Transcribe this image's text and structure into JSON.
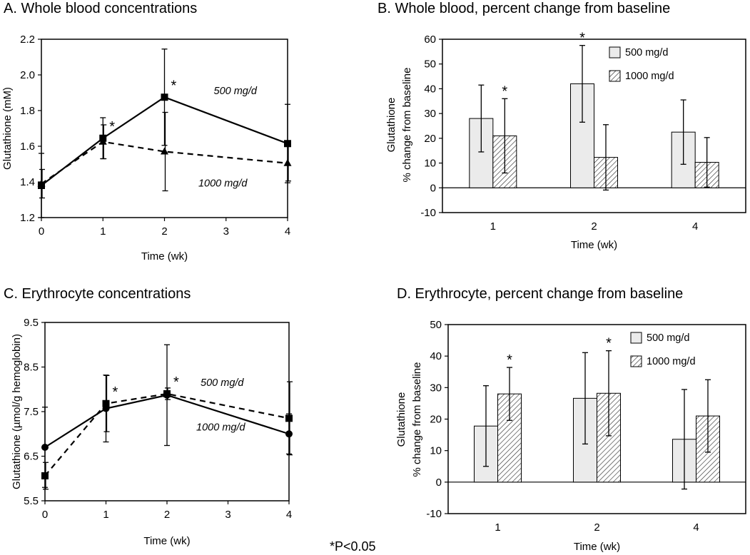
{
  "footnote": "*P<0.05",
  "colors": {
    "bar_500": "#ebebeb",
    "axis": "#000000",
    "line": "#000000"
  },
  "chart_data": [
    {
      "id": "A",
      "type": "line",
      "title": "A.  Whole blood concentrations",
      "xlabel": "Time (wk)",
      "ylabel": "Glutathione (mM)",
      "xlim": [
        0,
        4
      ],
      "ylim": [
        1.2,
        2.2
      ],
      "xticks": [
        0,
        1,
        2,
        3,
        4
      ],
      "yticks": [
        1.2,
        1.4,
        1.6,
        1.8,
        2.0,
        2.2
      ],
      "tick_decimals": 1,
      "series": [
        {
          "name": "500 mg/d",
          "label": "500 mg/d",
          "dash": "solid",
          "marker": "square",
          "x": [
            0,
            1,
            2,
            4
          ],
          "y": [
            1.38,
            1.645,
            1.875,
            1.615
          ],
          "err": [
            0.18,
            0.115,
            0.27,
            0.22
          ],
          "sig": [
            false,
            true,
            true,
            false
          ]
        },
        {
          "name": "1000 mg/d",
          "label": "1000 mg/d",
          "dash": "dashed",
          "marker": "triangle",
          "x": [
            0,
            1,
            2,
            4
          ],
          "y": [
            1.39,
            1.625,
            1.57,
            1.505
          ],
          "err": [
            0.08,
            0.095,
            0.22,
            0.1
          ],
          "sig": [
            false,
            false,
            false,
            false
          ]
        }
      ]
    },
    {
      "id": "B",
      "type": "bar",
      "title": "B.  Whole blood, percent change from baseline",
      "xlabel": "Time (wk)",
      "ylabel": [
        "Glutathione",
        "% change from baseline"
      ],
      "categories": [
        "1",
        "2",
        "4"
      ],
      "ylim": [
        -10,
        60
      ],
      "yticks": [
        -10,
        0,
        10,
        20,
        30,
        40,
        50,
        60
      ],
      "legend": "top-right",
      "series": [
        {
          "name": "500 mg/d",
          "pattern": "solid",
          "values": [
            28,
            42,
            22.5
          ],
          "err": [
            13.5,
            15.5,
            13
          ],
          "sig": [
            false,
            true,
            false
          ]
        },
        {
          "name": "1000 mg/d",
          "pattern": "hatched",
          "values": [
            21,
            12.3,
            10.3
          ],
          "err": [
            15,
            13.2,
            10
          ],
          "sig": [
            true,
            false,
            false
          ]
        }
      ]
    },
    {
      "id": "C",
      "type": "line",
      "title": "C.  Erythrocyte concentrations",
      "xlabel": "Time (wk)",
      "ylabel": "Glutathione (µmol/g hemoglobin)",
      "xlim": [
        0,
        4
      ],
      "ylim": [
        5.5,
        9.5
      ],
      "xticks": [
        0,
        1,
        2,
        3,
        4
      ],
      "yticks": [
        5.5,
        6.5,
        7.5,
        8.5,
        9.5
      ],
      "tick_decimals": 1,
      "series": [
        {
          "name": "500 mg/d",
          "label": "500 mg/d",
          "dash": "solid",
          "marker": "circle",
          "x": [
            0,
            1,
            2,
            4
          ],
          "y": [
            6.7,
            7.57,
            7.87,
            7.0
          ],
          "err": [
            0.9,
            0.75,
            1.13,
            0.45
          ],
          "sig": [
            false,
            false,
            false,
            false
          ]
        },
        {
          "name": "1000 mg/d",
          "label": "1000 mg/d",
          "dash": "dashed",
          "marker": "square",
          "x": [
            0,
            1,
            2,
            4
          ],
          "y": [
            6.06,
            7.68,
            7.9,
            7.35
          ],
          "err": [
            0.3,
            0.63,
            0.13,
            0.82
          ],
          "sig": [
            false,
            true,
            true,
            false
          ]
        }
      ]
    },
    {
      "id": "D",
      "type": "bar",
      "title": "D.  Erythrocyte, percent change from baseline",
      "xlabel": "Time (wk)",
      "ylabel": [
        "Glutathione",
        "% change from baseline"
      ],
      "categories": [
        "1",
        "2",
        "4"
      ],
      "ylim": [
        -10,
        50
      ],
      "yticks": [
        -10,
        0,
        10,
        20,
        30,
        40,
        50
      ],
      "legend": "top-right",
      "series": [
        {
          "name": "500 mg/d",
          "pattern": "solid",
          "values": [
            17.8,
            26.6,
            13.6
          ],
          "err": [
            12.8,
            14.5,
            15.8
          ],
          "sig": [
            false,
            false,
            false
          ]
        },
        {
          "name": "1000 mg/d",
          "pattern": "hatched",
          "values": [
            28,
            28.2,
            21
          ],
          "err": [
            8.4,
            13.5,
            11.5
          ],
          "sig": [
            true,
            true,
            false
          ]
        }
      ]
    }
  ]
}
